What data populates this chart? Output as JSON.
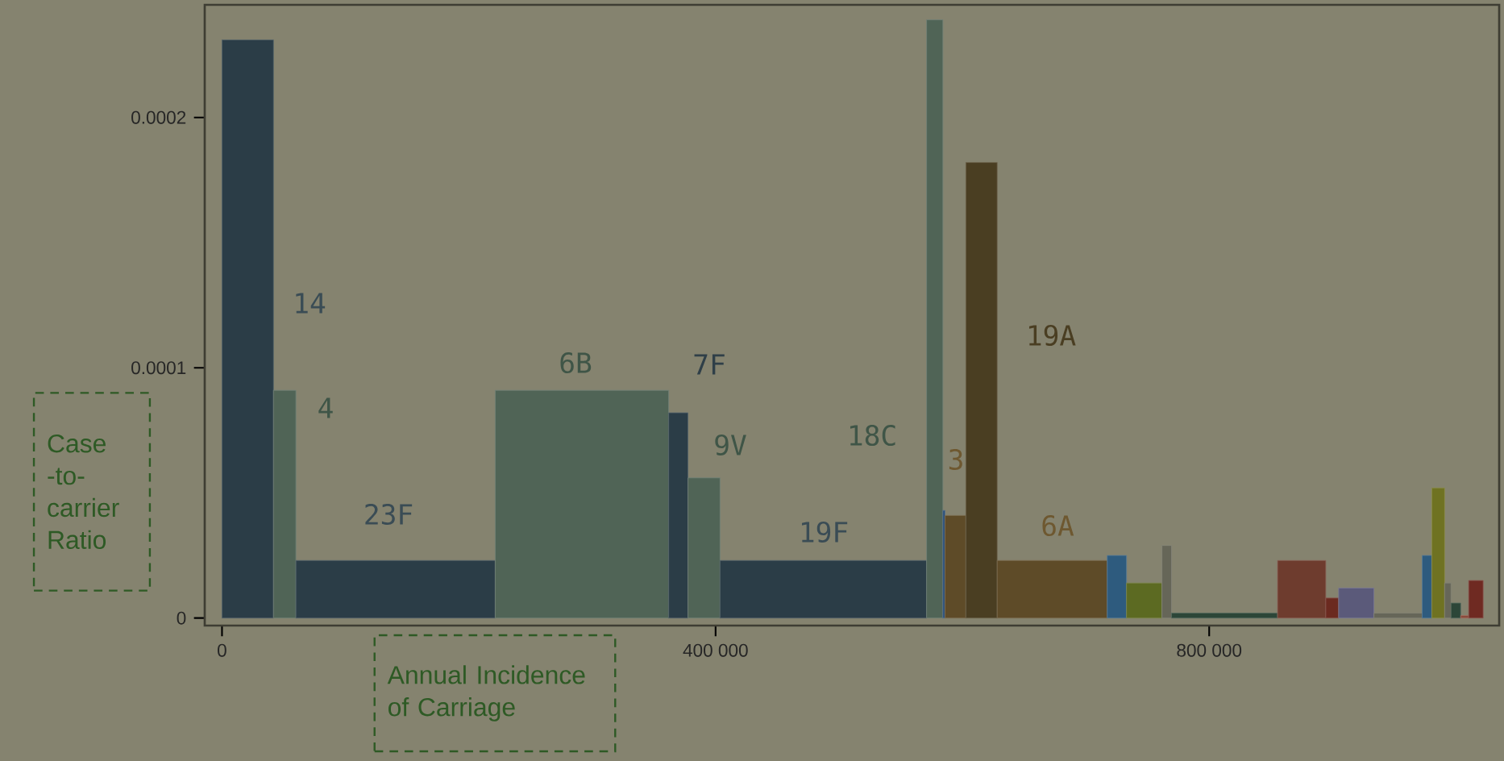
{
  "chart_data": {
    "type": "histogram",
    "xlabel": "Annual Incidence of Carriage",
    "ylabel": "Case -to- carrier Ratio",
    "bins": [
      0,
      41700,
      59900,
      221400,
      362000,
      377600,
      403600,
      571000,
      584200,
      585900,
      602800,
      628200,
      717400,
      733000,
      761700,
      769500,
      855400,
      894500,
      904900,
      933500,
      972600,
      980400,
      990800,
      996000,
      1003800,
      1010300,
      1022000
    ],
    "values": [
      0.000231,
      9.1e-05,
      2.3e-05,
      9.1e-05,
      8.2e-05,
      5.6e-05,
      2.3e-05,
      0.000239,
      4.3e-05,
      4.1e-05,
      0.000182,
      2.3e-05,
      2.5e-05,
      1.4e-05,
      2.9e-05,
      2e-06,
      2.3e-05,
      8e-06,
      1.2e-05,
      2e-06,
      2.5e-05,
      5.2e-05,
      1.4e-05,
      6e-06,
      1e-06,
      1.5e-05
    ],
    "colors": [
      "#2b3d47",
      "#506456",
      "#2b3d47",
      "#506456",
      "#2b3d47",
      "#506456",
      "#2b3d47",
      "#506456",
      "#2a4f78",
      "#5e4b28",
      "#4a3e22",
      "#5e4b28",
      "#2e5b7e",
      "#5c6a22",
      "#666658",
      "#2c4638",
      "#6e3c2e",
      "#6b2a20",
      "#5b5a7a",
      "#666658",
      "#2e5b7e",
      "#6f7222",
      "#666658",
      "#2c4638",
      "#8a4a3a",
      "#6f2a22"
    ],
    "xlim": [
      -14000,
      1035000
    ],
    "ylim": [
      -3e-06,
      0.000245
    ],
    "xticks": [
      0,
      {
        "value": 400000,
        "label": "400 000"
      },
      {
        "value": 800000,
        "label": "800 000"
      }
    ],
    "yticks": [
      0,
      0.0001,
      0.0002
    ],
    "annotations": [
      "14",
      "4",
      "23F",
      "6B",
      "7F",
      "9V",
      "19F",
      "18C",
      "3",
      "19A",
      "6A"
    ]
  }
}
